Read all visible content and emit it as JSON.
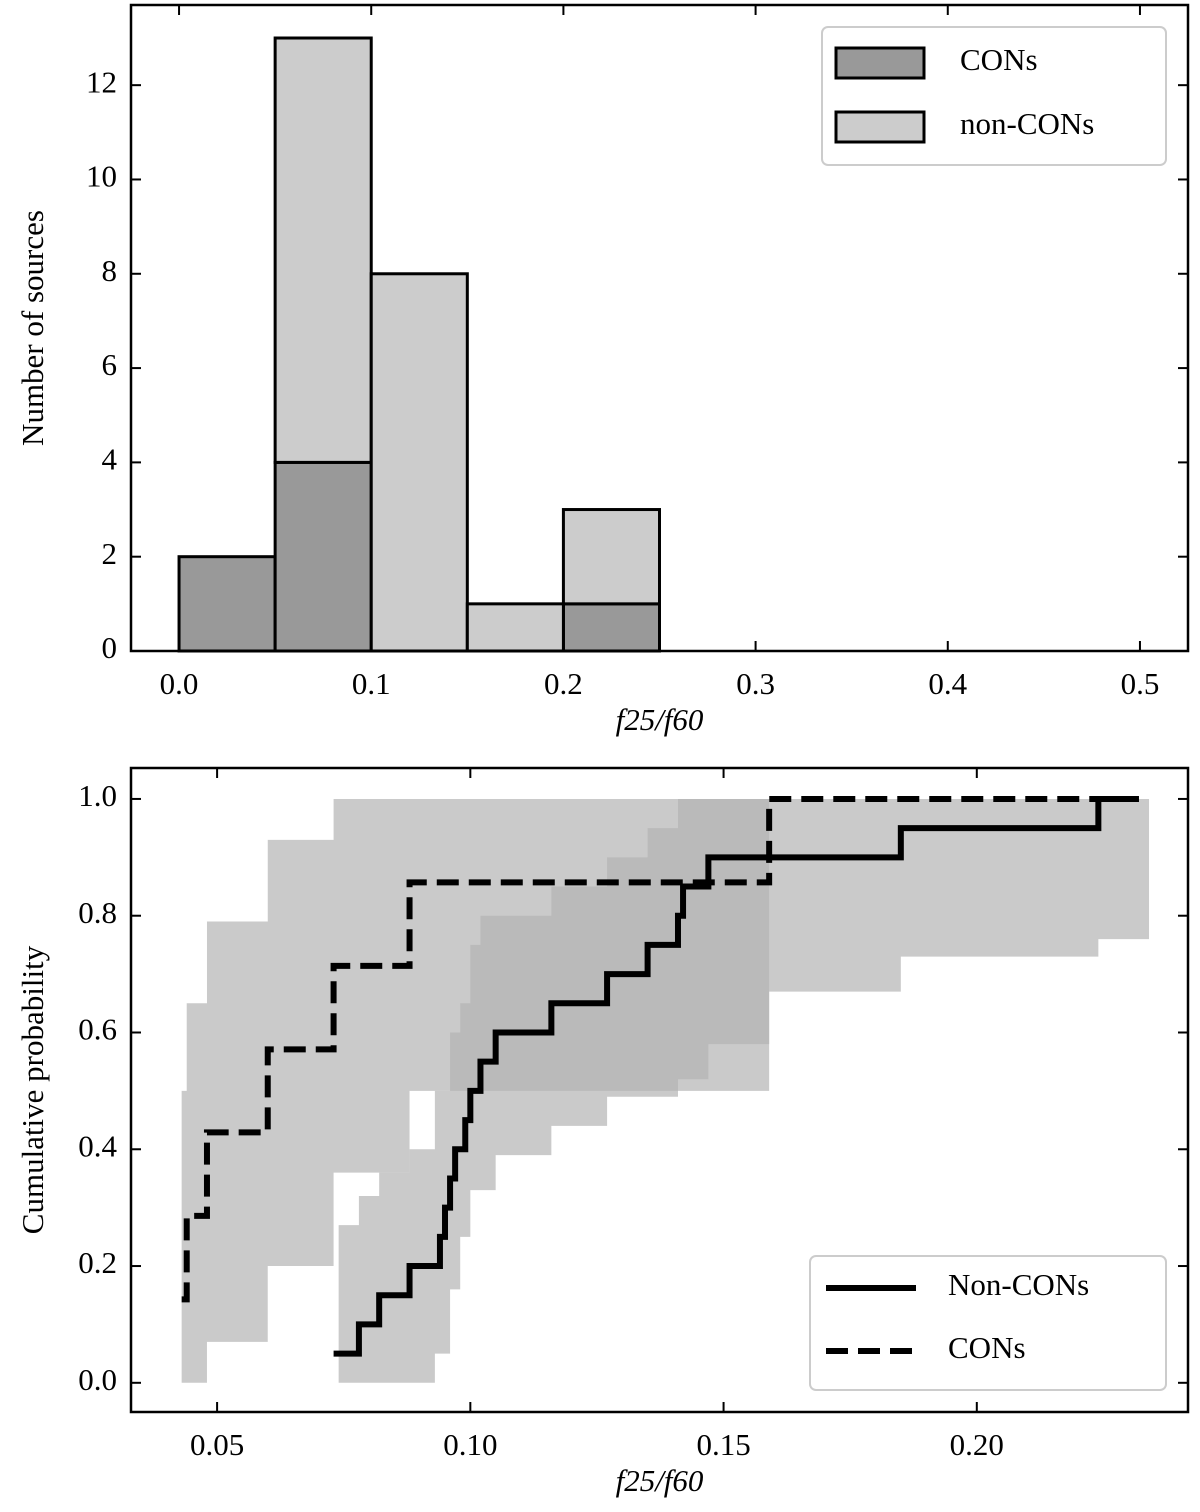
{
  "chart_data": [
    {
      "type": "histogram",
      "bins": [
        0,
        0.05,
        0.1,
        0.15,
        0.2,
        0.25
      ],
      "stacked": true,
      "series": [
        {
          "name": "CONs",
          "color": "#999999",
          "values": [
            2,
            4,
            0,
            0,
            1
          ]
        },
        {
          "name": "non-CONs",
          "color": "#cccccc",
          "values": [
            0,
            9,
            8,
            1,
            2
          ]
        }
      ],
      "xlim": [
        -0.025,
        0.525
      ],
      "ylim": [
        0,
        13.7
      ],
      "xticks": [
        {
          "value": 0,
          "label": "0.0"
        },
        0.1,
        0.2,
        0.3,
        0.4,
        0.5
      ],
      "yticks": [
        0,
        2,
        4,
        6,
        8,
        10,
        12
      ],
      "x_label": "f25/f60",
      "y_label": "Number of sources",
      "legend": "upper right"
    },
    {
      "type": "step",
      "series": [
        {
          "name": "Non-CONs",
          "color": "#000000",
          "linestyle": "solid",
          "x": [
            0.073,
            0.078,
            0.082,
            0.088,
            0.094,
            0.095,
            0.096,
            0.097,
            0.099,
            0.1,
            0.102,
            0.105,
            0.116,
            0.127,
            0.135,
            0.141,
            0.142,
            0.147,
            0.185,
            0.224,
            0.232
          ],
          "values": [
            0.05,
            0.1,
            0.15,
            0.2,
            0.25,
            0.3,
            0.35,
            0.4,
            0.45,
            0.5,
            0.55,
            0.6,
            0.65,
            0.7,
            0.75,
            0.8,
            0.85,
            0.9,
            0.95,
            1.0,
            1.0
          ]
        },
        {
          "name": "CONs",
          "color": "#000000",
          "linestyle": "dashed",
          "x": [
            0.043,
            0.044,
            0.048,
            0.06,
            0.073,
            0.088,
            0.159,
            0.232
          ],
          "values": [
            0.143,
            0.286,
            0.429,
            0.571,
            0.714,
            0.857,
            1.0,
            1.0
          ]
        }
      ],
      "bands": [
        {
          "color": "#b4b4b4",
          "x": [
            0.043,
            0.044,
            0.048,
            0.06,
            0.073,
            0.088,
            0.159
          ],
          "upper": [
            0.5,
            0.65,
            0.79,
            0.93,
            1.0,
            1.0,
            1.0
          ],
          "lower": [
            0,
            0,
            0.07,
            0.2,
            0.36,
            0.5,
            0.5
          ]
        },
        {
          "color": "#b4b4b4",
          "x": [
            0.074,
            0.078,
            0.082,
            0.088,
            0.093,
            0.096,
            0.098,
            0.1,
            0.102,
            0.105,
            0.116,
            0.127,
            0.135,
            0.141,
            0.147,
            0.159,
            0.185,
            0.221,
            0.224,
            0.234
          ],
          "upper": [
            0.27,
            0.32,
            0.36,
            0.4,
            0.5,
            0.6,
            0.65,
            0.75,
            0.8,
            0.8,
            0.85,
            0.9,
            0.95,
            1.0,
            1.0,
            1.0,
            1.0,
            1.0,
            1.0,
            1.0
          ],
          "lower": [
            0,
            0,
            0,
            0,
            0.05,
            0.16,
            0.25,
            0.33,
            0.33,
            0.39,
            0.44,
            0.49,
            0.49,
            0.52,
            0.58,
            0.67,
            0.73,
            0.73,
            0.76,
            0.76
          ]
        }
      ],
      "xlim": [
        0.033,
        0.2417
      ],
      "ylim": [
        -0.05,
        1.053
      ],
      "xticks": [
        0.05,
        {
          "value": 0.1,
          "label": "0.10"
        },
        0.15,
        {
          "value": 0.2,
          "label": "0.20"
        }
      ],
      "yticks": [
        {
          "value": 0,
          "label": "0.0"
        },
        0.2,
        0.4,
        0.6,
        0.8,
        {
          "value": 1,
          "label": "1.0"
        }
      ],
      "x_label": "f25/f60",
      "y_label": "Cumulative probability",
      "legend": "lower right"
    }
  ]
}
